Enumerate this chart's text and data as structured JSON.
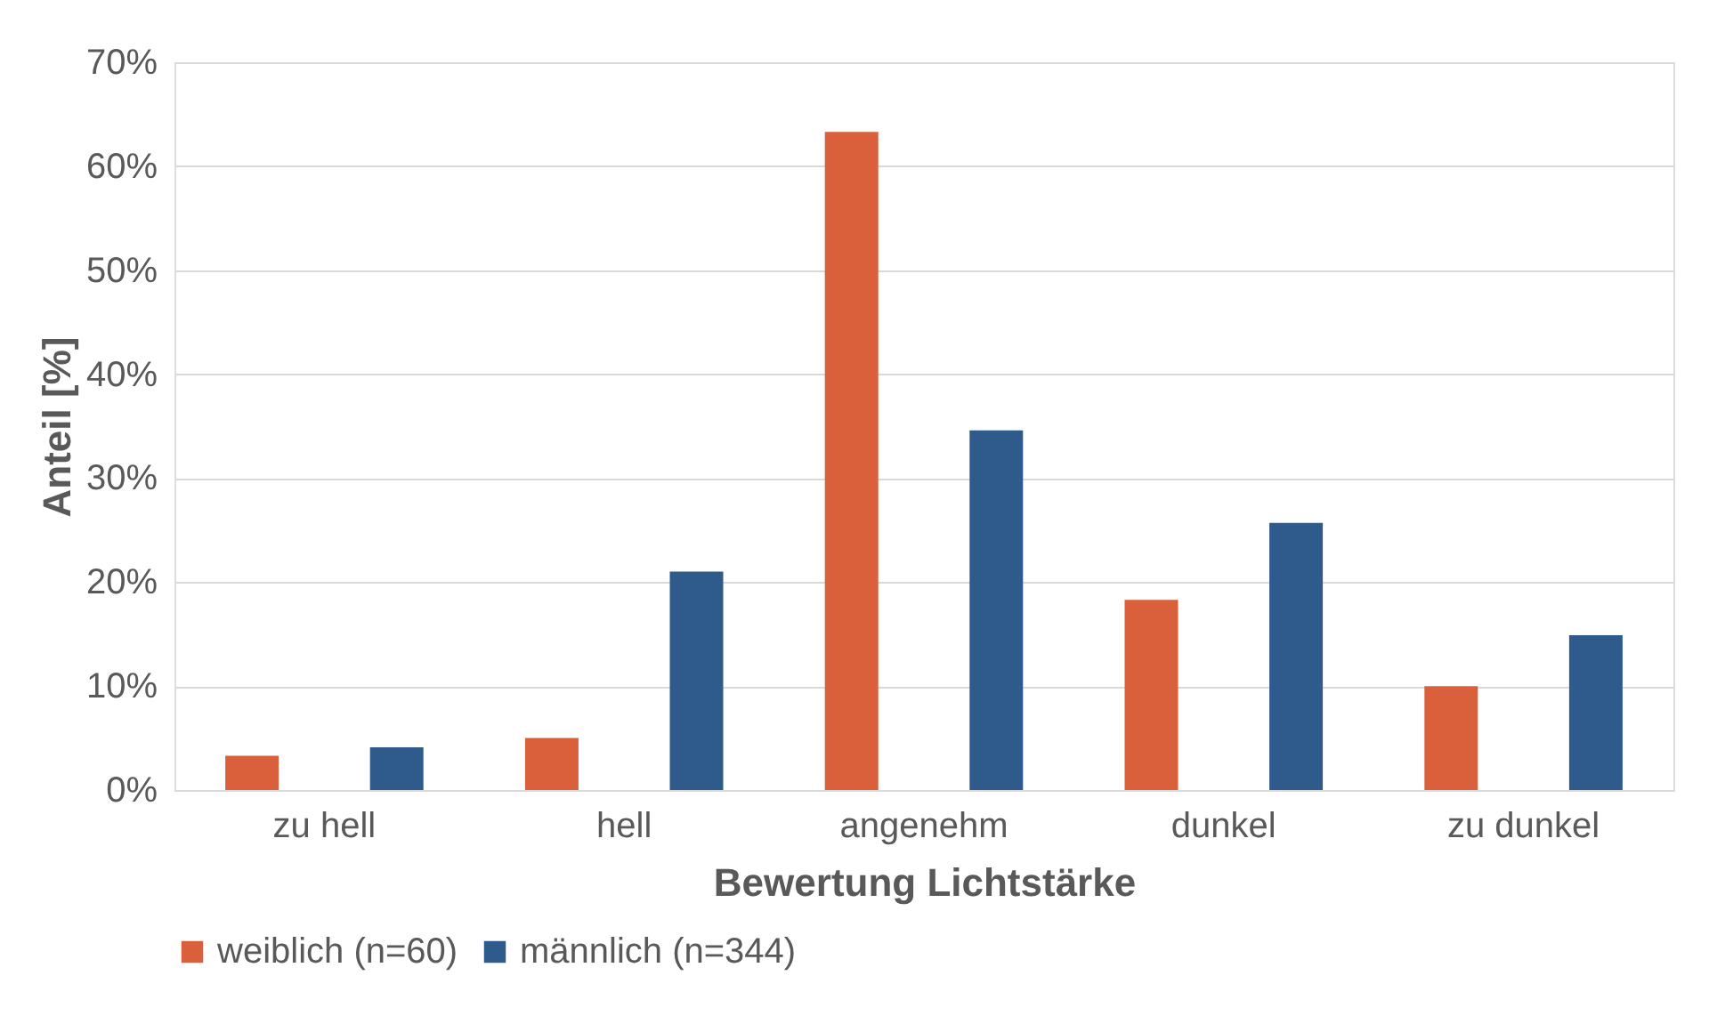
{
  "chart_data": {
    "type": "bar",
    "xlabel": "Bewertung Lichtstärke",
    "ylabel": "Anteil [%]",
    "categories": [
      "zu hell",
      "hell",
      "angenehm",
      "dunkel",
      "zu dunkel"
    ],
    "series": [
      {
        "name": "weiblich (n=60)",
        "color": "#d9603b",
        "values": [
          3.3,
          5.0,
          63.3,
          18.3,
          10.0
        ]
      },
      {
        "name": "männlich (n=344)",
        "color": "#2f5a8c",
        "values": [
          4.1,
          21.0,
          34.6,
          25.7,
          14.9
        ]
      }
    ],
    "ylim": [
      0,
      70
    ],
    "yticks": [
      {
        "value": 0,
        "label": "0%"
      },
      {
        "value": 10,
        "label": "10%"
      },
      {
        "value": 20,
        "label": "20%"
      },
      {
        "value": 30,
        "label": "30%"
      },
      {
        "value": 40,
        "label": "40%"
      },
      {
        "value": 50,
        "label": "50%"
      },
      {
        "value": 60,
        "label": "60%"
      },
      {
        "value": 70,
        "label": "70%"
      }
    ],
    "grid": "y",
    "legend": "bottom"
  }
}
